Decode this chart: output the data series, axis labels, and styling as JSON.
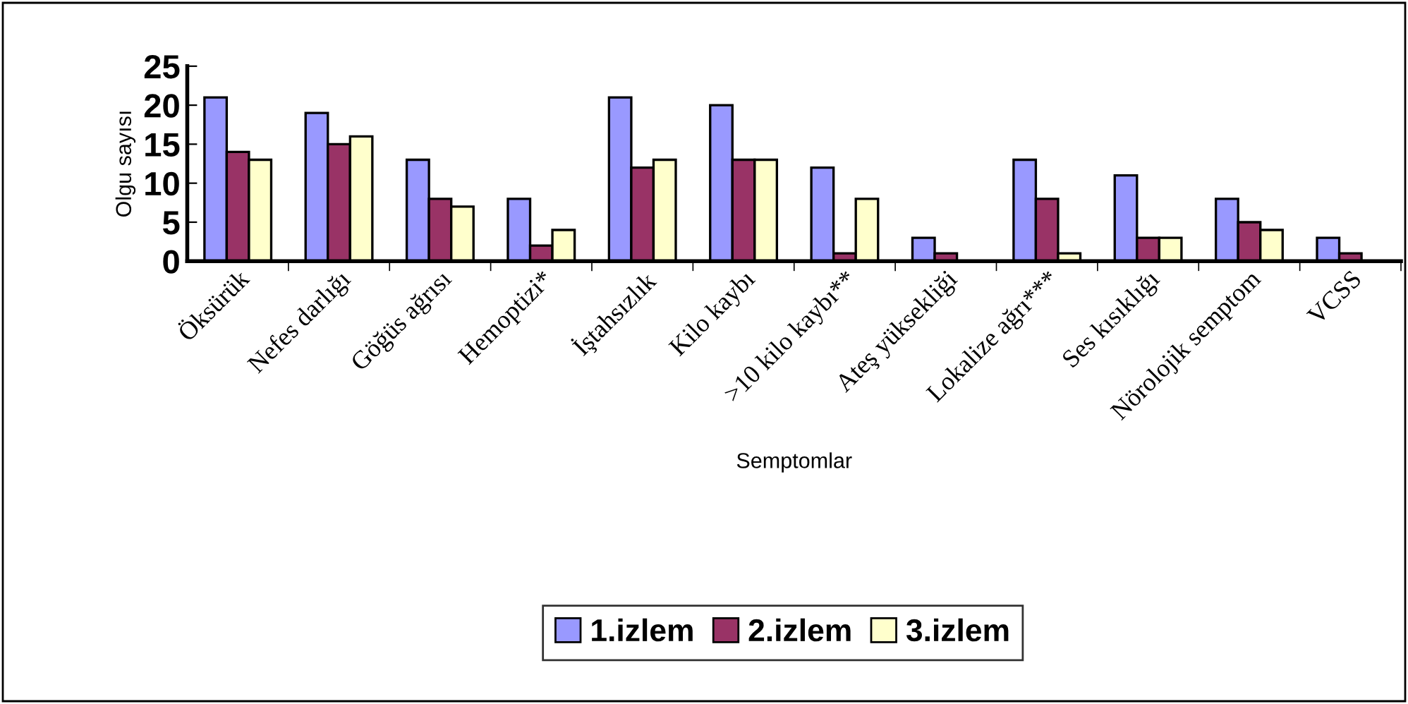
{
  "chart_data": {
    "type": "bar",
    "xlabel": "Semptomlar",
    "ylabel": "Olgu sayısı",
    "categories": [
      "Öksürük",
      "Nefes darlığı",
      "Göğüs ağrısı",
      "Hemoptizi*",
      "İştahsızlık",
      "Kilo kaybı",
      ">10 kilo kaybı**",
      "Ateş yüksekliği",
      "Lokalize ağrı***",
      "Ses kısıklığı",
      "Nörolojik semptom",
      "VCSS"
    ],
    "series": [
      {
        "name": "1.izlem",
        "color": "#9999ff",
        "values": [
          21,
          19,
          13,
          8,
          21,
          20,
          12,
          3,
          13,
          11,
          8,
          3
        ]
      },
      {
        "name": "2.izlem",
        "color": "#993366",
        "values": [
          14,
          15,
          8,
          2,
          12,
          13,
          1,
          1,
          8,
          3,
          5,
          1
        ]
      },
      {
        "name": "3.izlem",
        "color": "#ffffcc",
        "values": [
          13,
          16,
          7,
          4,
          13,
          13,
          8,
          null,
          1,
          3,
          4,
          null
        ]
      }
    ],
    "ylim": [
      0,
      25
    ],
    "yticks": [
      0,
      5,
      10,
      15,
      20,
      25
    ],
    "grid": false,
    "legend": "bottom"
  }
}
